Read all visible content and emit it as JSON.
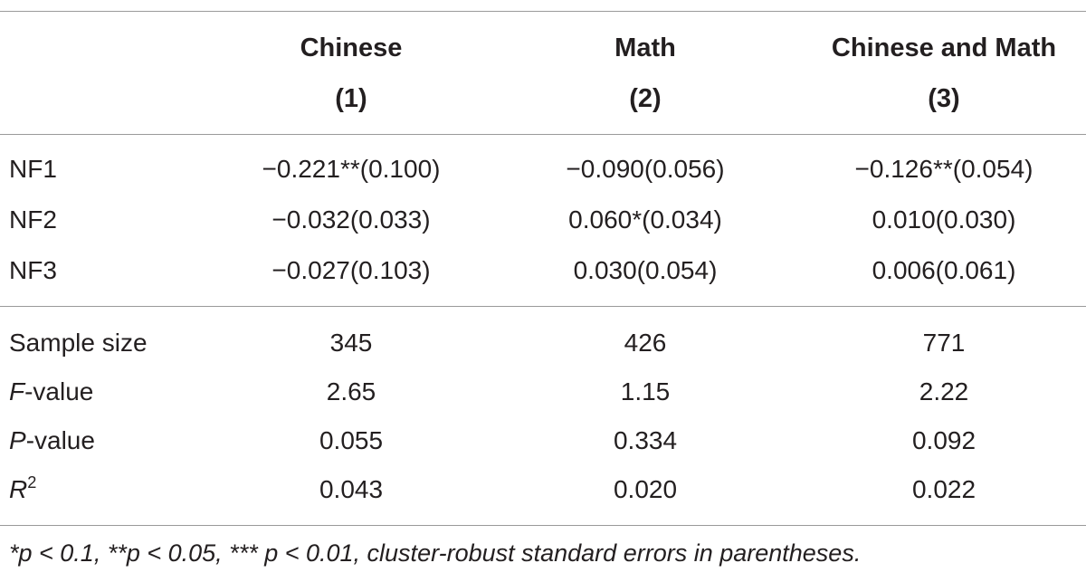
{
  "table": {
    "columns": [
      {
        "name": "Chinese",
        "number": "(1)"
      },
      {
        "name": "Math",
        "number": "(2)"
      },
      {
        "name": "Chinese and Math",
        "number": "(3)"
      }
    ],
    "coefficient_rows": [
      {
        "label": "NF1",
        "values": [
          "−0.221**(0.100)",
          "−0.090(0.056)",
          "−0.126**(0.054)"
        ]
      },
      {
        "label": "NF2",
        "values": [
          "−0.032(0.033)",
          "0.060*(0.034)",
          "0.010(0.030)"
        ]
      },
      {
        "label": "NF3",
        "values": [
          "−0.027(0.103)",
          "0.030(0.054)",
          "0.006(0.061)"
        ]
      }
    ],
    "stat_rows": [
      {
        "label": "Sample size",
        "values": [
          "345",
          "426",
          "771"
        ]
      },
      {
        "label_italic": "F",
        "label_rest": "-value",
        "values": [
          "2.65",
          "1.15",
          "2.22"
        ]
      },
      {
        "label_italic": "P",
        "label_rest": "-value",
        "values": [
          "0.055",
          "0.334",
          "0.092"
        ]
      },
      {
        "label_italic": "R",
        "label_sup": "2",
        "values": [
          "0.043",
          "0.020",
          "0.022"
        ]
      }
    ],
    "footnote": "*p < 0.1, **p < 0.05, *** p < 0.01, cluster-robust standard errors in parentheses."
  }
}
